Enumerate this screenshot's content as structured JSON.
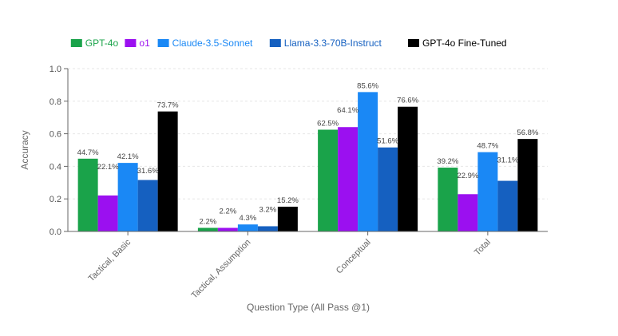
{
  "chart_data": {
    "type": "bar",
    "title": "",
    "xlabel": "Question Type (All Pass @1)",
    "ylabel": "Accuracy",
    "ylim": [
      0,
      1.0
    ],
    "yticks": [
      "0.0",
      "0.2",
      "0.4",
      "0.6",
      "0.8",
      "1.0"
    ],
    "ytick_values": [
      0,
      0.2,
      0.4,
      0.6,
      0.8,
      1.0
    ],
    "grid": true,
    "legend_position": "top",
    "categories": [
      "Tactical, Basic",
      "Tactical, Assumption",
      "Conceptual",
      "Total"
    ],
    "series": [
      {
        "name": "GPT-4o",
        "color": "#1aa34a",
        "values": [
          0.447,
          0.022,
          0.625,
          0.392
        ],
        "labels": [
          "44.7%",
          "2.2%",
          "62.5%",
          "39.2%"
        ]
      },
      {
        "name": "o1",
        "color": "#9b10f0",
        "values": [
          0.221,
          0.022,
          0.641,
          0.229
        ],
        "labels": [
          "22.1%",
          "2.2%",
          "64.1%",
          "22.9%"
        ]
      },
      {
        "name": "Claude-3.5-Sonnet",
        "color": "#1a88f5",
        "values": [
          0.421,
          0.043,
          0.856,
          0.487
        ],
        "labels": [
          "42.1%",
          "4.3%",
          "85.6%",
          "48.7%"
        ]
      },
      {
        "name": "Llama-3.3-70B-Instruct",
        "color": "#1560c0",
        "values": [
          0.316,
          0.032,
          0.516,
          0.311
        ],
        "labels": [
          "31.6%",
          "3.2%",
          "51.6%",
          "31.1%"
        ]
      },
      {
        "name": "GPT-4o Fine-Tuned",
        "color": "#000000",
        "values": [
          0.737,
          0.152,
          0.766,
          0.568
        ],
        "labels": [
          "73.7%",
          "15.2%",
          "76.6%",
          "56.8%"
        ]
      }
    ]
  }
}
